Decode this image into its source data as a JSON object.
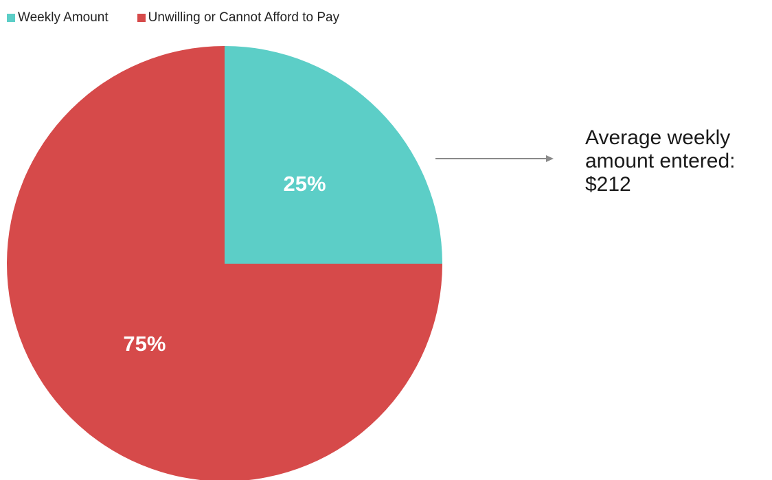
{
  "chart_data": {
    "type": "pie",
    "slices": [
      {
        "name": "Weekly Amount",
        "value": 25,
        "label": "25%",
        "color": "#5ccec7"
      },
      {
        "name": "Unwilling or Cannot Afford to Pay",
        "value": 75,
        "label": "75%",
        "color": "#d64a4a"
      }
    ],
    "start_angle": "12 o'clock",
    "direction": "clockwise",
    "legend": {
      "placement": "top-left",
      "entries": [
        "Weekly Amount",
        "Unwilling or Cannot Afford to Pay"
      ]
    },
    "annotation": {
      "lines": [
        "Average weekly",
        "amount entered:",
        "$212"
      ],
      "points_to": "Weekly Amount"
    }
  }
}
